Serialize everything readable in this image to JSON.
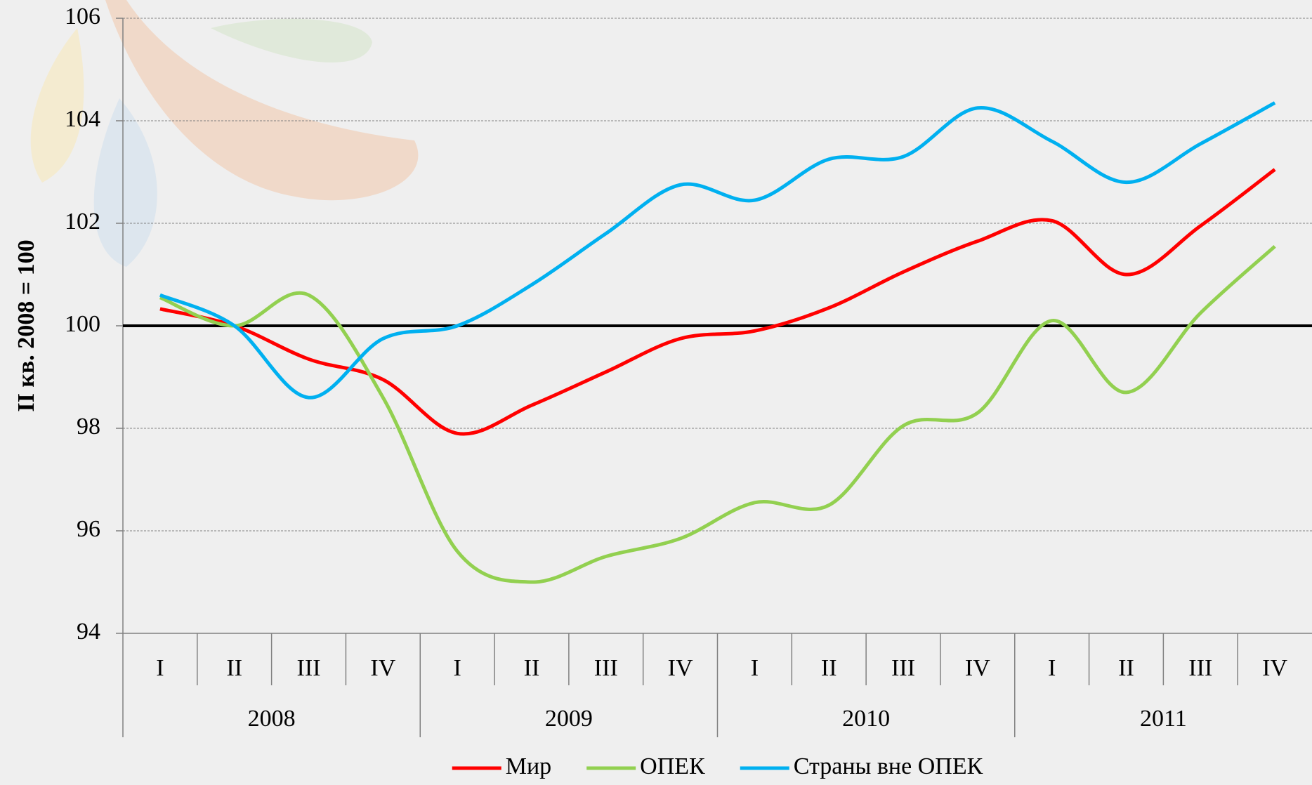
{
  "chart_data": {
    "type": "line",
    "y_label": "II кв. 2008 = 100",
    "categories": [
      "I",
      "II",
      "III",
      "IV",
      "I",
      "II",
      "III",
      "IV",
      "I",
      "II",
      "III",
      "IV",
      "I",
      "II",
      "III",
      "IV"
    ],
    "groups": [
      "2008",
      "2009",
      "2010",
      "2011"
    ],
    "series": [
      {
        "name": "Мир",
        "color": "#ff0000",
        "values": [
          100.33,
          100.0,
          99.35,
          98.95,
          97.9,
          98.45,
          99.1,
          99.75,
          99.9,
          100.35,
          101.05,
          101.65,
          102.05,
          101.0,
          101.95,
          103.05
        ]
      },
      {
        "name": "ОПЕК",
        "color": "#92d050",
        "values": [
          100.55,
          100.0,
          100.6,
          98.6,
          95.6,
          95.0,
          95.5,
          95.85,
          96.55,
          96.5,
          98.05,
          98.3,
          100.1,
          98.7,
          100.25,
          101.55
        ]
      },
      {
        "name": "Страны вне ОПЕК",
        "color": "#00b0f0",
        "values": [
          100.6,
          100.0,
          98.6,
          99.75,
          100.0,
          100.8,
          101.8,
          102.75,
          102.45,
          103.25,
          103.3,
          104.25,
          103.6,
          102.8,
          103.55,
          104.35
        ]
      }
    ],
    "reference_line": 100,
    "ylim": [
      94,
      106
    ],
    "yticks": [
      94,
      96,
      98,
      100,
      102,
      104,
      106
    ],
    "grid": true,
    "legend": "bottom"
  }
}
